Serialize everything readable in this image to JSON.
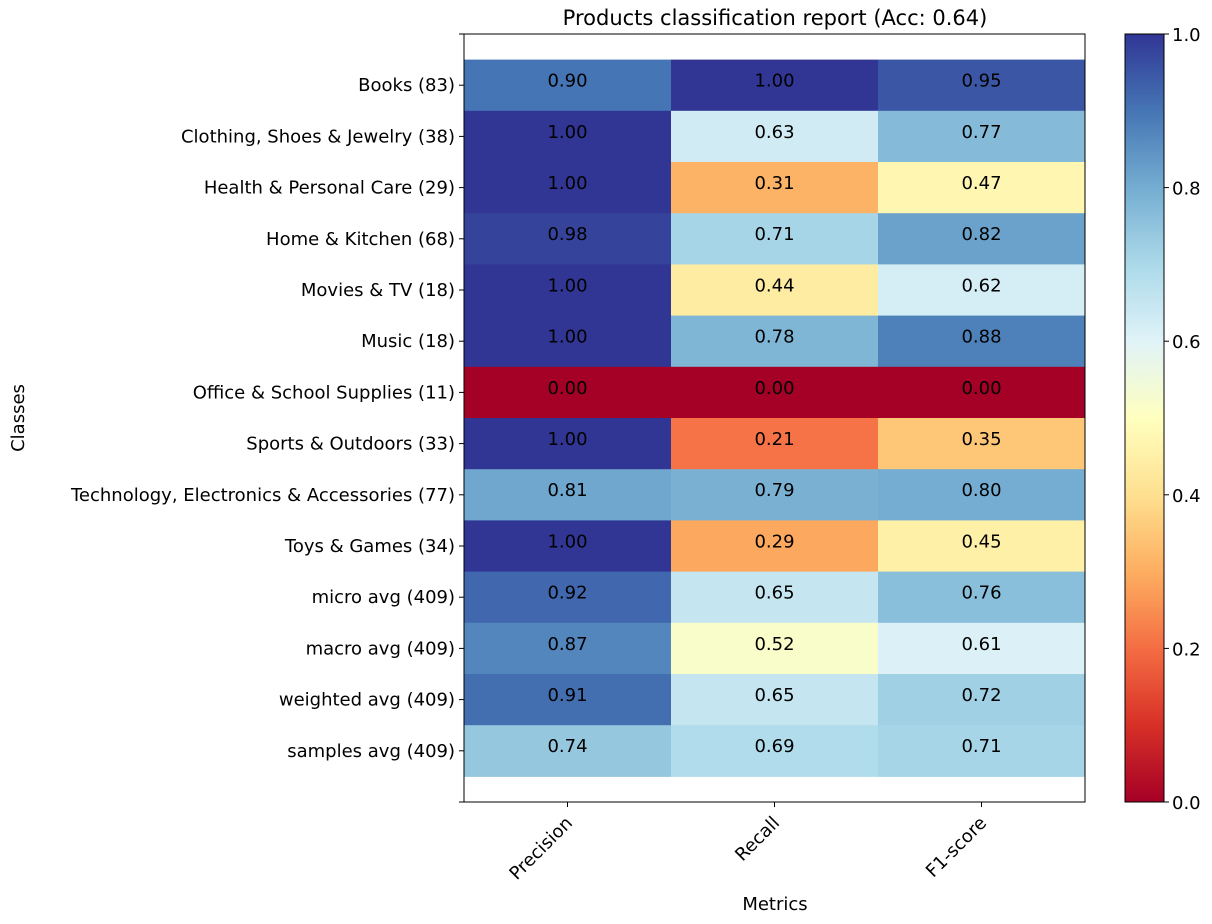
{
  "chart_data": {
    "type": "heatmap",
    "title": "Products classification report (Acc: 0.64)",
    "xlabel": "Metrics",
    "ylabel": "Classes",
    "columns": [
      "Precision",
      "Recall",
      "F1-score"
    ],
    "rows": [
      "Books (83)",
      "Clothing, Shoes & Jewelry (38)",
      "Health & Personal Care (29)",
      "Home & Kitchen (68)",
      "Movies & TV (18)",
      "Music (18)",
      "Office & School Supplies (11)",
      "Sports & Outdoors (33)",
      "Technology, Electronics & Accessories (77)",
      "Toys & Games (34)",
      "micro avg (409)",
      "macro avg (409)",
      "weighted avg (409)",
      "samples avg (409)"
    ],
    "values": [
      [
        0.9,
        1.0,
        0.95
      ],
      [
        1.0,
        0.63,
        0.77
      ],
      [
        1.0,
        0.31,
        0.47
      ],
      [
        0.98,
        0.71,
        0.82
      ],
      [
        1.0,
        0.44,
        0.62
      ],
      [
        1.0,
        0.78,
        0.88
      ],
      [
        0.0,
        0.0,
        0.0
      ],
      [
        1.0,
        0.21,
        0.35
      ],
      [
        0.81,
        0.79,
        0.8
      ],
      [
        1.0,
        0.29,
        0.45
      ],
      [
        0.92,
        0.65,
        0.76
      ],
      [
        0.87,
        0.52,
        0.61
      ],
      [
        0.91,
        0.65,
        0.72
      ],
      [
        0.74,
        0.69,
        0.71
      ]
    ],
    "colormap": "RdYlBu",
    "value_range": [
      0.0,
      1.0
    ],
    "colorbar_ticks": [
      "0.0",
      "0.2",
      "0.4",
      "0.6",
      "0.8",
      "1.0"
    ]
  }
}
